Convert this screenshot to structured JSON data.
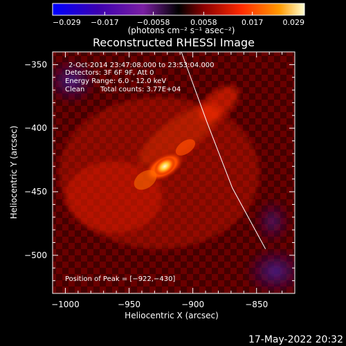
{
  "chart_data": {
    "type": "heatmap",
    "title": "Reconstructed RHESSI Image",
    "xlabel": "Heliocentric X (arcsec)",
    "ylabel": "Heliocentric Y (arcsec)",
    "xlim": [
      -1010,
      -820
    ],
    "ylim": [
      -530,
      -340
    ],
    "x_ticks": [
      -1000,
      -950,
      -900,
      -850
    ],
    "y_ticks": [
      -350,
      -400,
      -450,
      -500
    ],
    "x_tick_labels": [
      "−1000",
      "−950",
      "−900",
      "−850"
    ],
    "y_tick_labels": [
      "−350",
      "−400",
      "−450",
      "−500"
    ],
    "colorbar": {
      "range": [
        -0.029,
        0.029
      ],
      "ticks": [
        -0.029,
        -0.017,
        -0.0058,
        0.0058,
        0.017,
        0.029
      ],
      "tick_labels": [
        "−0.029",
        "−0.017",
        "−0.0058",
        "0.0058",
        "0.017",
        "0.029"
      ],
      "unit_label": "(photons cm⁻² s⁻¹ asec⁻²)",
      "colormap": [
        "#0000ff",
        "#3c00b0",
        "#7a1fa2",
        "#000000",
        "#8b0000",
        "#ff2a00",
        "#ff9900",
        "#ffffd0"
      ]
    },
    "annotations": {
      "time_range": "2-Oct-2014 23:47:08.000 to 23:53:04.000",
      "detectors": "Detectors: 3F 6F 9F, Att 0",
      "energy_range": "Energy Range: 6.0 - 12.0 keV",
      "clean_label": "Clean",
      "total_counts": "Total counts: 3.77E+04",
      "peak_position": "Position of Peak = [−922,−430]"
    },
    "peak": {
      "x": -922,
      "y": -430
    },
    "limb_curve": [
      [
        -909,
        -340
      ],
      [
        -889,
        -395
      ],
      [
        -869,
        -447
      ],
      [
        -843,
        -495
      ]
    ],
    "grid": false
  },
  "footer": {
    "date": "17-May-2022 20:32"
  }
}
